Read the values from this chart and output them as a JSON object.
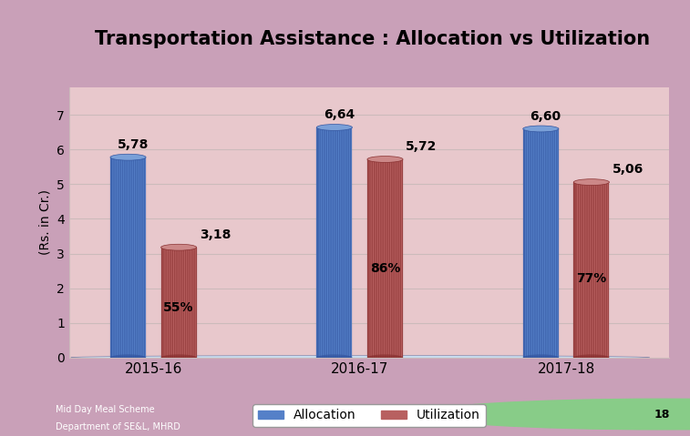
{
  "title": "Transportation Assistance : Allocation vs Utilization",
  "categories": [
    "2015-16",
    "2016-17",
    "2017-18"
  ],
  "allocation": [
    5.78,
    6.64,
    6.6
  ],
  "utilization": [
    3.18,
    5.72,
    5.06
  ],
  "allocation_labels": [
    "5,78",
    "6,64",
    "6,60"
  ],
  "utilization_labels": [
    "3,18",
    "5,72",
    "5,06"
  ],
  "pct_labels": [
    "55%",
    "86%",
    "77%"
  ],
  "ylabel": "(Rs. in Cr.)",
  "ylim": [
    0,
    7.8
  ],
  "yticks": [
    0,
    1,
    2,
    3,
    4,
    5,
    6,
    7
  ],
  "outer_bg": "#c9a0b8",
  "header_bg": "#c9a0b8",
  "chart_bg": "#e8c8cc",
  "floor_bg": "#a8c8e8",
  "alloc_face": "#5580c8",
  "alloc_line": "#3355a0",
  "alloc_top": "#7aa0d8",
  "util_face": "#b86060",
  "util_line": "#883030",
  "util_top": "#cc8888",
  "grid_color": "#ccbbbb",
  "title_color": "#000000",
  "label_fontsize": 10,
  "axis_fontsize": 10,
  "legend_fontsize": 10,
  "title_fontsize": 15
}
